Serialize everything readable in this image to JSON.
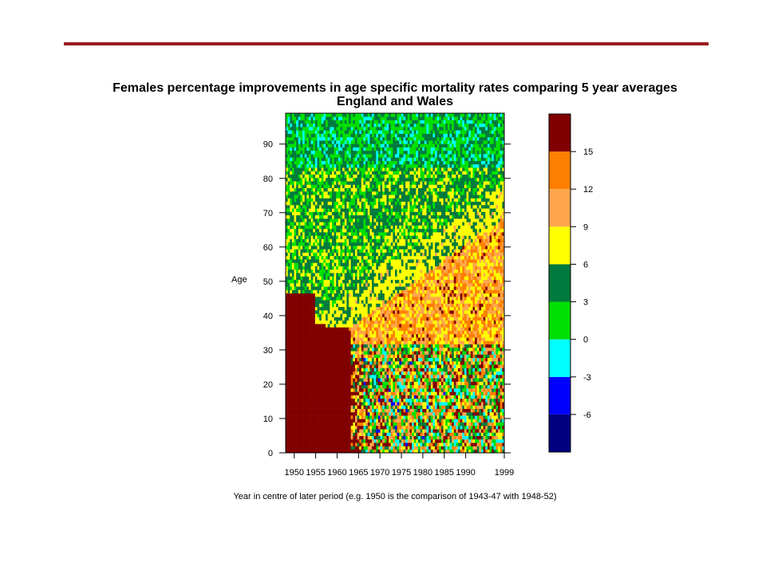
{
  "chart_data": {
    "type": "heatmap",
    "title": "Females percentage improvements in age specific mortality rates comparing 5 year averages",
    "subtitle": "England and Wales",
    "xlabel": "Year in centre of later period (e.g. 1950 is the comparison of 1943-47 with 1948-52)",
    "ylabel": "Age",
    "x_range": [
      1948,
      1999
    ],
    "y_range": [
      0,
      99
    ],
    "x_ticks": [
      "1950",
      "1955",
      "1960",
      "1965",
      "1970",
      "1975",
      "1980",
      "1985",
      "1990",
      "1999"
    ],
    "x_tick_values": [
      1950,
      1955,
      1960,
      1965,
      1970,
      1975,
      1980,
      1985,
      1990,
      1999
    ],
    "y_ticks": [
      "0",
      "10",
      "20",
      "30",
      "40",
      "50",
      "60",
      "70",
      "80",
      "90"
    ],
    "y_tick_values": [
      0,
      10,
      20,
      30,
      40,
      50,
      60,
      70,
      80,
      90
    ],
    "legend": {
      "placement": "right",
      "labels": [
        "-6",
        "-3",
        "0",
        "3",
        "6",
        "9",
        "12",
        "15"
      ],
      "boundaries": [
        -6,
        -3,
        0,
        3,
        6,
        9,
        12,
        15
      ],
      "colors": [
        "#000080",
        "#0000ff",
        "#00ffff",
        "#00e000",
        "#007a3d",
        "#ffff00",
        "#ffa64d",
        "#ff8000",
        "#800000"
      ]
    }
  }
}
